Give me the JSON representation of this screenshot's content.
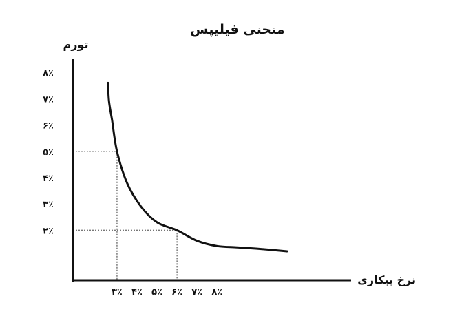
{
  "chart_data": {
    "type": "line",
    "title": "منحنی فیلیپس",
    "xlabel": "نرخ بیکاری",
    "ylabel": "تورم",
    "x_ticks": [
      "۳٪",
      "۴٪",
      "۵٪",
      "۶٪",
      "۷٪",
      "۸٪"
    ],
    "y_ticks": [
      "۸٪",
      "۷٪",
      "۶٪",
      "۵٪",
      "۴٪",
      "۳٪",
      "۲٪"
    ],
    "series": [
      {
        "values": [
          {
            "x": 2.55,
            "y": 7.6
          },
          {
            "x": 2.6,
            "y": 6.9
          },
          {
            "x": 2.75,
            "y": 6.2
          },
          {
            "x": 3.0,
            "y": 5.0
          },
          {
            "x": 3.5,
            "y": 3.8
          },
          {
            "x": 4.2,
            "y": 2.9
          },
          {
            "x": 5.0,
            "y": 2.3
          },
          {
            "x": 6.0,
            "y": 2.0
          },
          {
            "x": 7.0,
            "y": 1.6
          },
          {
            "x": 8.0,
            "y": 1.4
          },
          {
            "x": 9.0,
            "y": 1.35
          },
          {
            "x": 10.0,
            "y": 1.3
          },
          {
            "x": 11.5,
            "y": 1.2
          }
        ]
      }
    ],
    "reference_points": [
      {
        "x": 3,
        "y": 5
      },
      {
        "x": 6,
        "y": 2
      }
    ],
    "xlim": [
      0.8,
      14.7
    ],
    "ylim": [
      0.1,
      8.5
    ],
    "grid": false,
    "legend": "none"
  }
}
